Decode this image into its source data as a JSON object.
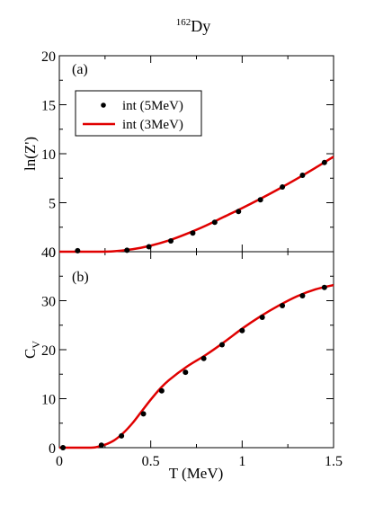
{
  "title": {
    "superscript": "162",
    "base": "Dy"
  },
  "colors": {
    "line": "#e00000",
    "points": "#000000",
    "axes": "#000000"
  },
  "chart_data": [
    {
      "type": "line",
      "panel_label": "(a)",
      "ylabel": "ln(Z')",
      "ylim": [
        0,
        20
      ],
      "y_ticks": [
        0,
        5,
        10,
        15,
        20
      ],
      "xlim": [
        0,
        1.5
      ],
      "legend": {
        "placement": "top-left",
        "entries": [
          {
            "label": "int (5MeV)",
            "marker": "point"
          },
          {
            "label": "int (3MeV)",
            "marker": "line"
          }
        ]
      },
      "series": [
        {
          "name": "int (5MeV)",
          "kind": "points",
          "x": [
            0.1,
            0.37,
            0.49,
            0.61,
            0.73,
            0.85,
            0.98,
            1.1,
            1.22,
            1.33,
            1.45
          ],
          "y": [
            0.1,
            0.15,
            0.5,
            1.1,
            1.9,
            3.0,
            4.1,
            5.3,
            6.6,
            7.8,
            9.1
          ]
        },
        {
          "name": "int (3MeV)",
          "kind": "line",
          "x": [
            0.0,
            0.2,
            0.3,
            0.4,
            0.5,
            0.6,
            0.7,
            0.8,
            0.9,
            1.0,
            1.1,
            1.2,
            1.3,
            1.4,
            1.5
          ],
          "y": [
            0.0,
            0.0,
            0.05,
            0.25,
            0.62,
            1.15,
            1.85,
            2.65,
            3.55,
            4.45,
            5.4,
            6.4,
            7.45,
            8.55,
            9.7
          ]
        }
      ]
    },
    {
      "type": "line",
      "panel_label": "(b)",
      "ylabel_base": "C",
      "ylabel_sub": "V",
      "xlabel": "T (MeV)",
      "ylim": [
        0,
        40
      ],
      "y_ticks": [
        0,
        10,
        20,
        30,
        40
      ],
      "xlim": [
        0,
        1.5
      ],
      "x_ticks": [
        0,
        0.5,
        1,
        1.5
      ],
      "series": [
        {
          "name": "int (5MeV)",
          "kind": "points",
          "x": [
            0.02,
            0.23,
            0.34,
            0.46,
            0.56,
            0.69,
            0.79,
            0.89,
            1.0,
            1.11,
            1.22,
            1.33,
            1.45
          ],
          "y": [
            0.0,
            0.5,
            2.4,
            6.9,
            11.6,
            15.4,
            18.2,
            21.0,
            23.9,
            26.6,
            29.0,
            31.0,
            32.7
          ]
        },
        {
          "name": "int (3MeV)",
          "kind": "line",
          "x": [
            0.0,
            0.15,
            0.2,
            0.25,
            0.3,
            0.35,
            0.4,
            0.45,
            0.5,
            0.55,
            0.6,
            0.7,
            0.8,
            0.9,
            1.0,
            1.1,
            1.2,
            1.3,
            1.4,
            1.5
          ],
          "y": [
            0.0,
            0.0,
            0.1,
            0.6,
            1.5,
            3.0,
            5.0,
            7.4,
            9.8,
            12.0,
            13.8,
            16.6,
            18.9,
            21.5,
            24.3,
            26.8,
            29.0,
            30.9,
            32.3,
            33.2
          ]
        }
      ]
    }
  ]
}
